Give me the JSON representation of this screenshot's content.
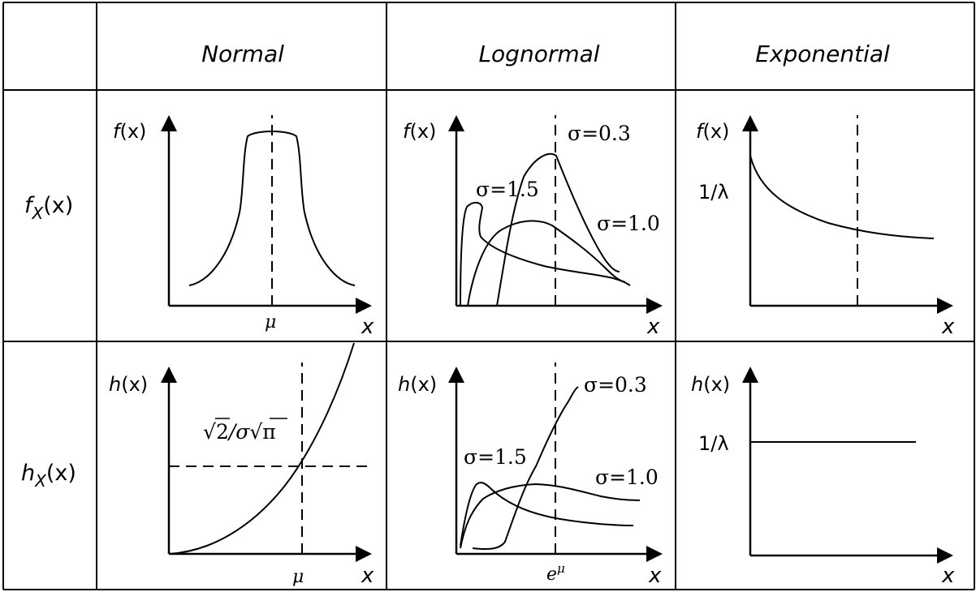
{
  "columns": {
    "normal": "Normal",
    "lognormal": "Lognormal",
    "exponential": "Exponential"
  },
  "rows": {
    "pdf": {
      "base": "f",
      "sub": "X",
      "arg": "(x)"
    },
    "hazard": {
      "base": "h",
      "sub": "X",
      "arg": "(x)"
    }
  },
  "axes": {
    "pdf_ylabel": {
      "base": "f",
      "arg": "(x)"
    },
    "hazard_ylabel": {
      "base": "h",
      "arg": "(x)"
    },
    "xlabel": "x"
  },
  "normal": {
    "pdf_tick": "μ",
    "hazard_tick": "μ",
    "hazard_level": {
      "num": "2",
      "mid": "/σ",
      "den": "π"
    }
  },
  "lognormal": {
    "sigma_low": "σ=0.3",
    "sigma_mid": "σ=1.0",
    "sigma_high": "σ=1.5",
    "hazard_tick": {
      "base": "e",
      "sup": "μ"
    }
  },
  "exponential": {
    "level": "1/λ"
  }
}
